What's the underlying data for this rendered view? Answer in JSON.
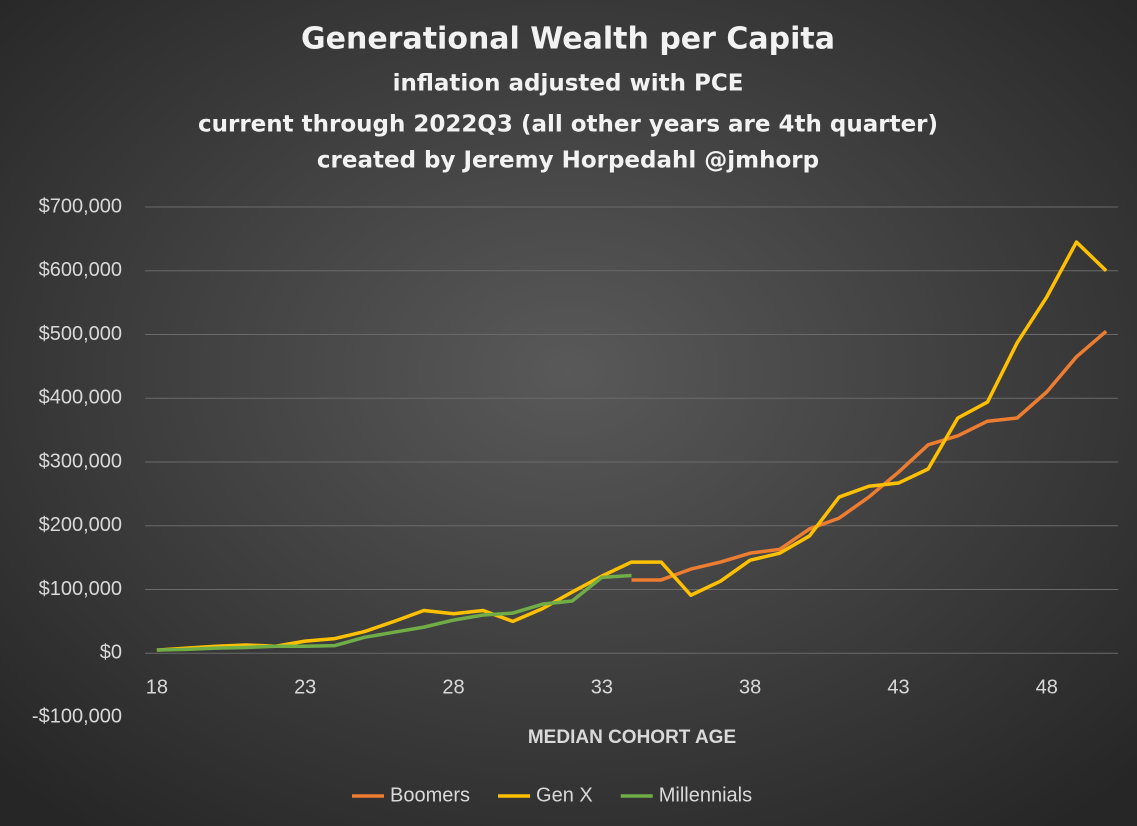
{
  "chart_data": {
    "type": "line",
    "title": "Generational Wealth per Capita",
    "subtitle": [
      "inflation adjusted with PCE",
      "current through 2022Q3 (all other years are 4th quarter)",
      "created by Jeremy Horpedahl @jmhorp"
    ],
    "x_label": "MEDIAN COHORT AGE",
    "x": [
      18,
      19,
      20,
      21,
      22,
      23,
      24,
      25,
      26,
      27,
      28,
      29,
      30,
      31,
      32,
      33,
      34,
      35,
      36,
      37,
      38,
      39,
      40,
      41,
      42,
      43,
      44,
      45,
      46,
      47,
      48,
      49,
      50
    ],
    "series": [
      {
        "name": "Boomers",
        "color": "#ed7d31",
        "values": [
          null,
          null,
          null,
          null,
          null,
          null,
          null,
          null,
          null,
          null,
          null,
          null,
          null,
          null,
          null,
          null,
          115000,
          115000,
          132000,
          143000,
          157000,
          163000,
          195000,
          212000,
          245000,
          284000,
          327000,
          341000,
          364000,
          369000,
          410000,
          465000,
          505000
        ]
      },
      {
        "name": "Gen X",
        "color": "#ffc000",
        "values": [
          5000,
          8000,
          11000,
          13000,
          11000,
          19000,
          23000,
          34000,
          50000,
          67000,
          62000,
          67000,
          50000,
          70000,
          96000,
          121000,
          143000,
          143000,
          91000,
          113000,
          146000,
          157000,
          184000,
          245000,
          262000,
          267000,
          289000,
          369000,
          394000,
          487000,
          559000,
          645000,
          600000
        ]
      },
      {
        "name": "Millennials",
        "color": "#70ad47",
        "values": [
          5000,
          6000,
          8000,
          9000,
          11000,
          11000,
          12000,
          25000,
          33000,
          41000,
          52000,
          60000,
          63000,
          77000,
          82000,
          119000,
          122000,
          null,
          null,
          null,
          null,
          null,
          null,
          null,
          null,
          null,
          null,
          null,
          null,
          null,
          null,
          null,
          null
        ]
      }
    ],
    "xlim": [
      17.6,
      50.4
    ],
    "xticks": [
      18,
      23,
      28,
      33,
      38,
      43,
      48
    ],
    "ylim": [
      -100000,
      700000
    ],
    "yticks": [
      {
        "value": -100000,
        "label": "-$100,000"
      },
      {
        "value": 0,
        "label": "$0"
      },
      {
        "value": 100000,
        "label": "$100,000"
      },
      {
        "value": 200000,
        "label": "$200,000"
      },
      {
        "value": 300000,
        "label": "$300,000"
      },
      {
        "value": 400000,
        "label": "$400,000"
      },
      {
        "value": 500000,
        "label": "$500,000"
      },
      {
        "value": 600000,
        "label": "$600,000"
      },
      {
        "value": 700000,
        "label": "$700,000"
      }
    ],
    "grid": true,
    "legend": "bottom"
  }
}
